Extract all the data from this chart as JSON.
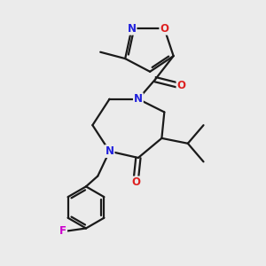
{
  "background_color": "#ebebeb",
  "bond_color": "#1a1a1a",
  "atom_colors": {
    "N": "#2020dd",
    "O": "#dd2020",
    "F": "#cc00cc",
    "C": "#1a1a1a"
  },
  "bond_width": 1.6,
  "figsize": [
    3.0,
    3.0
  ],
  "dpi": 100
}
